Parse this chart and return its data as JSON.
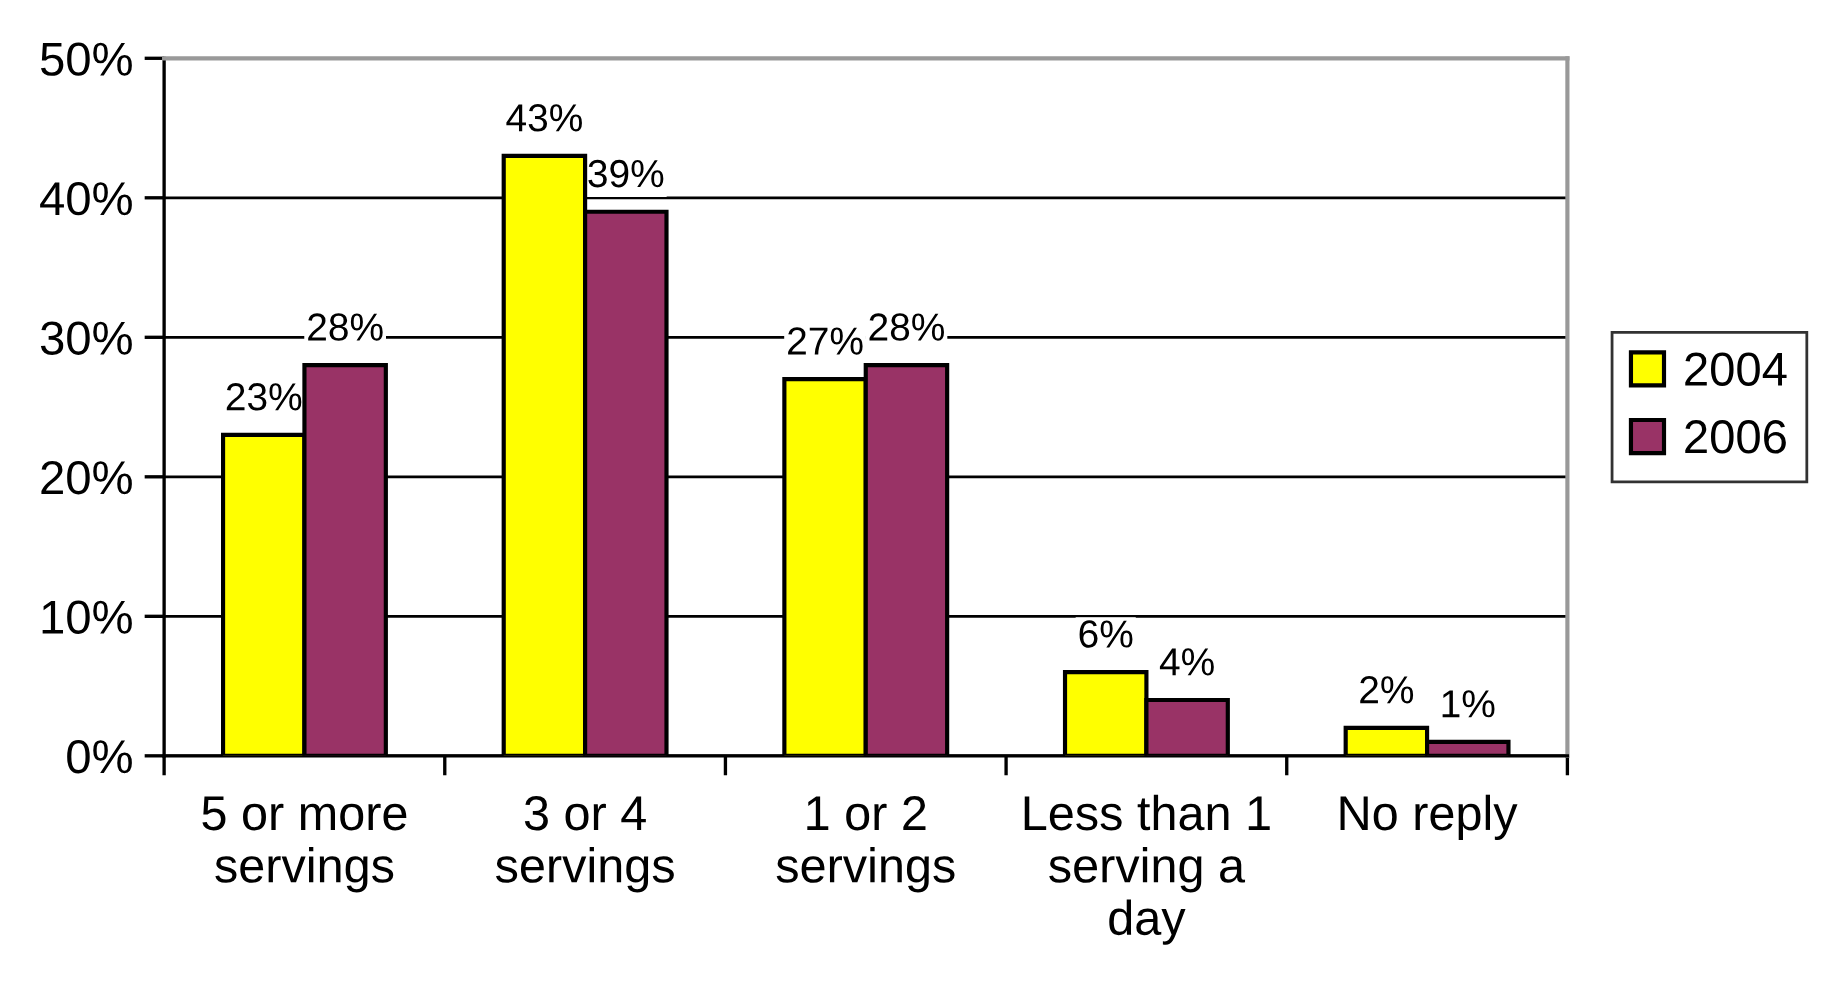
{
  "chart_data": {
    "type": "bar",
    "categories": [
      "5 or more\nservings",
      "3 or 4\nservings",
      "1 or 2\nservings",
      "Less than 1\nserving a\nday",
      "No reply"
    ],
    "series": [
      {
        "name": "2004",
        "color": "#ffff00",
        "values": [
          23,
          43,
          27,
          6,
          2
        ],
        "value_labels": [
          "23%",
          "43%",
          "27%",
          "6%",
          "2%"
        ]
      },
      {
        "name": "2006",
        "color": "#993366",
        "values": [
          28,
          39,
          28,
          4,
          1
        ],
        "value_labels": [
          "28%",
          "39%",
          "28%",
          "4%",
          "1%"
        ]
      }
    ],
    "ylim": [
      0,
      50
    ],
    "yticks": [
      {
        "value": 0,
        "label": "0%"
      },
      {
        "value": 10,
        "label": "10%"
      },
      {
        "value": 20,
        "label": "20%"
      },
      {
        "value": 30,
        "label": "30%"
      },
      {
        "value": 40,
        "label": "40%"
      },
      {
        "value": 50,
        "label": "50%"
      }
    ],
    "grid": "y",
    "legend": "right"
  }
}
